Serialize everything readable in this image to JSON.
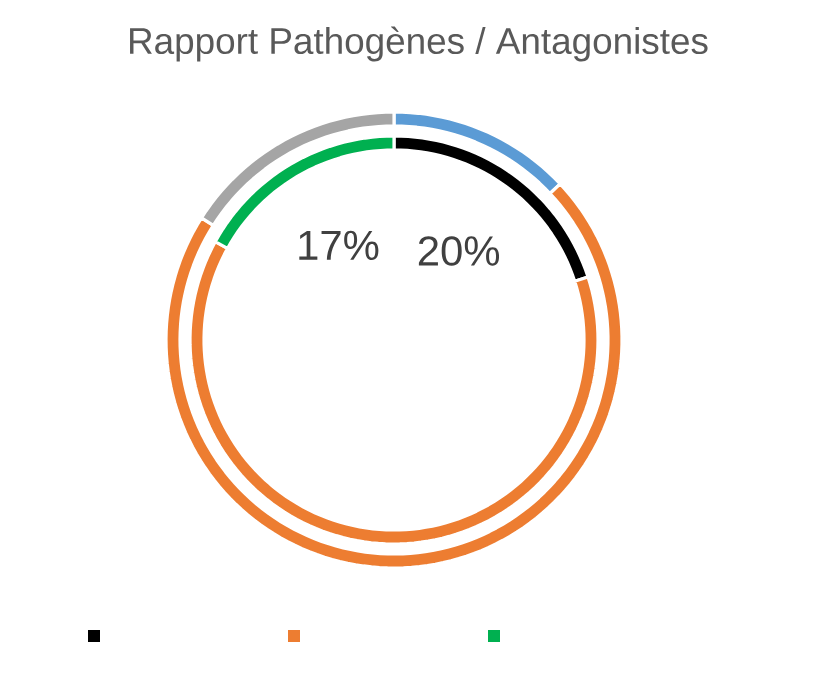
{
  "chart_data": {
    "type": "donut",
    "title": "Rapport Pathogènes / Antagonistes",
    "categories": [
      null,
      null,
      null
    ],
    "series": [
      {
        "values": [
          20,
          63,
          17
        ],
        "colors": [
          "#000000",
          "#ed7d31",
          "#00b050"
        ],
        "value_labels": [
          "20%",
          null,
          "17%"
        ]
      },
      {
        "values": [
          13,
          71,
          16
        ],
        "colors": [
          "#5b9bd5",
          "#ed7d31",
          "#a5a5a5"
        ]
      }
    ]
  }
}
